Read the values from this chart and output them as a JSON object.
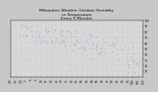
{
  "title": "Milwaukee Weather Outdoor Humidity\nvs Temperature\nEvery 5 Minutes",
  "title_fontsize": 3.2,
  "bg_color": "#c8c8c8",
  "plot_bg_color": "#d8d8d8",
  "grid_color": "#b8b8b8",
  "blue_color": "#0000dd",
  "red_color": "#dd0000",
  "xlim": [
    -20,
    110
  ],
  "ylim": [
    0,
    100
  ],
  "yticks": [
    10,
    20,
    30,
    40,
    50,
    60,
    70,
    80,
    90,
    100
  ],
  "xticks": [
    -20,
    -15,
    -10,
    -5,
    0,
    5,
    10,
    15,
    20,
    25,
    30,
    35,
    40,
    45,
    50,
    55,
    60,
    65,
    70,
    75,
    80,
    85,
    90,
    95,
    100,
    105,
    110
  ],
  "xtick_fontsize": 2.2,
  "ytick_fontsize": 2.2,
  "dot_size": 0.4
}
